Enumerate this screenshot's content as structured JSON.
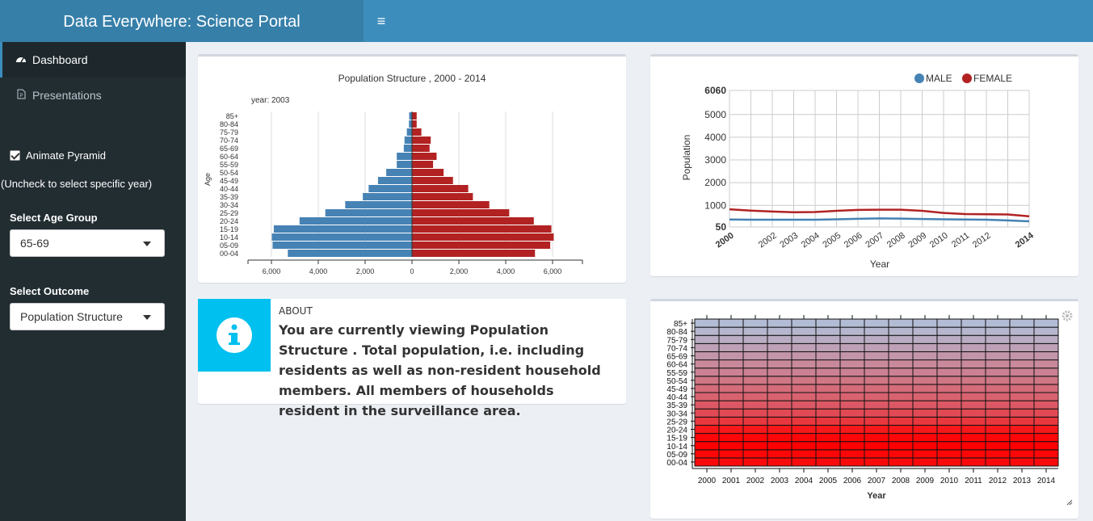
{
  "header": {
    "title": "Data Everywhere: Science Portal",
    "toggle_glyph": "≡"
  },
  "sidebar": {
    "items": [
      {
        "label": "Dashboard",
        "icon": "dashboard-icon",
        "active": true
      },
      {
        "label": "Presentations",
        "icon": "file-icon",
        "active": false
      }
    ],
    "animate_label": "Animate Pyramid",
    "animate_checked": true,
    "animate_hint": "(Uncheck to select specific year)",
    "age_group_label": "Select Age Group",
    "age_group_value": "65-69",
    "outcome_label": "Select Outcome",
    "outcome_value": "Population Structure"
  },
  "info_box": {
    "small": "ABOUT",
    "text": "You are currently viewing Population Structure . Total population, i.e. including residents as well as non-resident household members. All members of households resident in the surveillance area.",
    "icon": "info-icon"
  },
  "chart_data": [
    {
      "type": "bar",
      "orientation": "population-pyramid",
      "title": "Population Structure , 2000 - 2014",
      "subtitle": "year: 2003",
      "ylabel": "Age",
      "categories": [
        "00-04",
        "05-09",
        "10-14",
        "15-19",
        "20-24",
        "25-29",
        "30-34",
        "35-39",
        "40-44",
        "45-49",
        "50-54",
        "55-59",
        "60-64",
        "65-69",
        "70-74",
        "75-79",
        "80-84",
        "85+"
      ],
      "series": [
        {
          "color": "#4682b4",
          "values": [
            5300,
            5950,
            5980,
            5900,
            4800,
            3700,
            2850,
            2100,
            1850,
            1450,
            1100,
            650,
            650,
            350,
            320,
            220,
            130,
            120
          ]
        },
        {
          "color": "#b22222",
          "values": [
            5250,
            5900,
            6050,
            5950,
            5200,
            4150,
            3300,
            2600,
            2400,
            1750,
            1350,
            900,
            1050,
            750,
            800,
            400,
            200,
            200
          ]
        }
      ],
      "x_tick_labels": [
        "6,000",
        "4,000",
        "2,000",
        "0",
        "2,000",
        "4,000",
        "6,000"
      ],
      "xlim": [
        -7500,
        7500
      ]
    },
    {
      "type": "line",
      "x": [
        2000,
        2001,
        2002,
        2003,
        2004,
        2005,
        2006,
        2007,
        2008,
        2009,
        2010,
        2011,
        2012,
        2013,
        2014
      ],
      "x_tick_labels": [
        "2000",
        "2002",
        "2003",
        "2004",
        "2005",
        "2006",
        "2007",
        "2008",
        "2009",
        "2010",
        "2011",
        "2012",
        "2014"
      ],
      "series": [
        {
          "name": "MALE",
          "color": "#4682b4",
          "values": [
            380,
            370,
            370,
            370,
            370,
            390,
            410,
            430,
            420,
            400,
            390,
            380,
            370,
            340,
            300
          ]
        },
        {
          "name": "FEMALE",
          "color": "#b22222",
          "values": [
            830,
            770,
            730,
            700,
            710,
            760,
            800,
            810,
            810,
            760,
            670,
            620,
            610,
            600,
            520
          ]
        }
      ],
      "ylabel": "Population",
      "xlabel": "Year",
      "y_tick_labels": [
        "50",
        "1000",
        "2000",
        "3000",
        "4000",
        "5000",
        "6060"
      ],
      "ylim": [
        50,
        6060
      ],
      "grid": true,
      "legend": "top-right"
    },
    {
      "type": "heatmap",
      "rows": [
        "00-04",
        "05-09",
        "10-14",
        "15-19",
        "20-24",
        "25-29",
        "30-34",
        "35-39",
        "40-44",
        "45-49",
        "50-54",
        "55-59",
        "60-64",
        "65-69",
        "70-74",
        "75-79",
        "80-84",
        "85+"
      ],
      "columns": [
        "2000",
        "2001",
        "2002",
        "2003",
        "2004",
        "2005",
        "2006",
        "2007",
        "2008",
        "2009",
        "2010",
        "2011",
        "2012",
        "2013",
        "2014"
      ],
      "xlabel": "Year",
      "color_low": "#b0c4de",
      "color_high": "#ff0000",
      "row_intensity": [
        0.95,
        0.97,
        1.0,
        0.97,
        0.88,
        0.72,
        0.62,
        0.55,
        0.5,
        0.45,
        0.4,
        0.34,
        0.3,
        0.24,
        0.18,
        0.12,
        0.07,
        0.04
      ]
    }
  ]
}
